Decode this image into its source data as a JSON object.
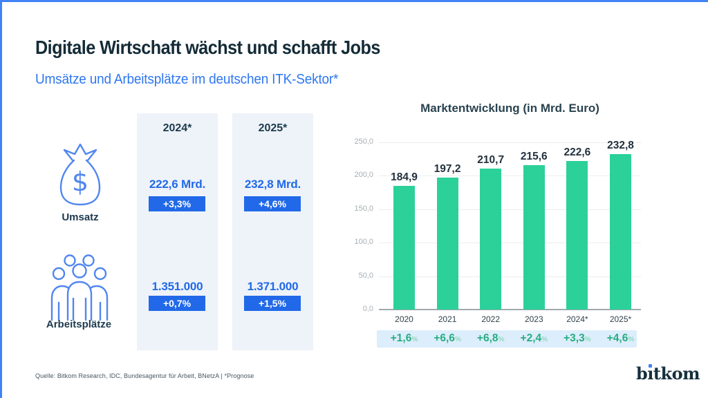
{
  "page": {
    "title": "Digitale Wirtschaft wächst und schafft Jobs",
    "subtitle": "Umsätze und Arbeitsplätze im deutschen ITK-Sektor*",
    "source": "Quelle: Bitkom Research, IDC, Bundesagentur für Arbeit, BNetzA | *Prognose",
    "logo": "bitkom"
  },
  "colors": {
    "accent_blue": "#4182f4",
    "value_blue": "#2169e8",
    "icon_blue": "#5186f0",
    "dark_navy": "#1c3a4d",
    "column_bg": "#eef3f9",
    "band_bg": "#dcedfb",
    "bar_green": "#2bd199",
    "growth_green": "#27ad81"
  },
  "rows": [
    {
      "icon": "money-bag-icon",
      "label": "Umsatz"
    },
    {
      "icon": "people-group-icon",
      "label": "Arbeitsplätze"
    }
  ],
  "columns": [
    {
      "header": "2024*",
      "umsatz_value": "222,6 Mrd.",
      "umsatz_change": "+3,3%",
      "jobs_value": "1.351.000",
      "jobs_change": "+0,7%"
    },
    {
      "header": "2025*",
      "umsatz_value": "232,8 Mrd.",
      "umsatz_change": "+4,6%",
      "jobs_value": "1.371.000",
      "jobs_change": "+1,5%"
    }
  ],
  "chart_data": {
    "type": "bar",
    "title": "Marktentwicklung (in Mrd. Euro)",
    "categories": [
      "2020",
      "2021",
      "2022",
      "2023",
      "2024*",
      "2025*"
    ],
    "values": [
      184.9,
      197.2,
      210.7,
      215.6,
      222.6,
      232.8
    ],
    "value_labels": [
      "184,9",
      "197,2",
      "210,7",
      "215,6",
      "222,6",
      "232,8"
    ],
    "growth_labels": [
      "+1,6",
      "+6,6",
      "+6,8",
      "+2,4",
      "+3,3",
      "+4,6"
    ],
    "percent_suffix": "%",
    "y_ticks": [
      "250,0",
      "200,0",
      "150,0",
      "100,0",
      "50,0",
      "0,0"
    ],
    "y_tick_values": [
      250,
      200,
      150,
      100,
      50,
      0
    ],
    "ylim": [
      0,
      250
    ],
    "grid": true,
    "legend": false,
    "bar_color": "#2bd199"
  }
}
